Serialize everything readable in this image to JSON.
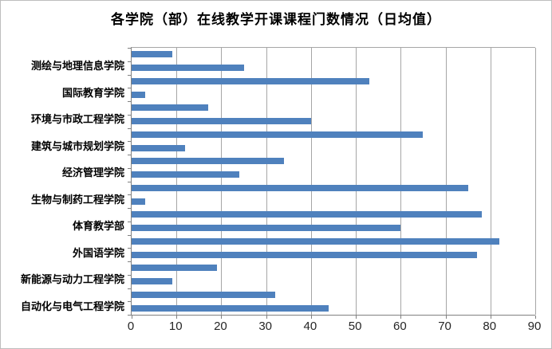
{
  "chart_data": {
    "type": "bar",
    "orientation": "horizontal",
    "title": "各学院（部）在线教学开课课程门数情况（日均值）",
    "categories": [
      "",
      "测绘与地理信息学院",
      "",
      "国际教育学院",
      "",
      "环境与市政工程学院",
      "",
      "建筑与城市规划学院",
      "",
      "经济管理学院",
      "",
      "生物与制药工程学院",
      "",
      "体育教学部",
      "",
      "外国语学院",
      "",
      "新能源与动力工程学院",
      "",
      "自动化与电气工程学院"
    ],
    "values": [
      9,
      25,
      53,
      3,
      17,
      40,
      65,
      12,
      34,
      24,
      75,
      3,
      78,
      60,
      82,
      77,
      19,
      9,
      32,
      44
    ],
    "xlabel": "",
    "ylabel": "",
    "xlim": [
      0,
      90
    ],
    "xticks": [
      0,
      10,
      20,
      30,
      40,
      50,
      60,
      70,
      80,
      90
    ],
    "grid": true,
    "legend": "none",
    "note": "category labels shown only for every second bar (axis label interval = 2)",
    "colors": {
      "bar": "#4f81bd",
      "gridline": "#a6a6a6",
      "axis": "#808080",
      "title_text": "#000000",
      "tick_text": "#262626",
      "frame_border": "#bdbdbd"
    }
  }
}
